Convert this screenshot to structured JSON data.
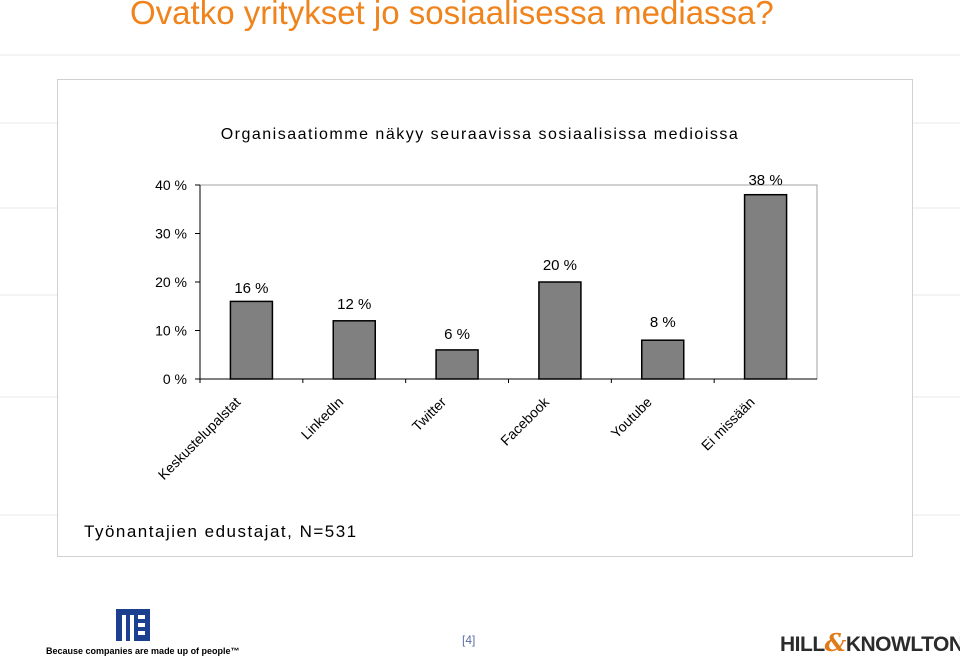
{
  "page": {
    "title": "Ovatko yritykset jo sosiaalisessa mediassa?",
    "note": "Työnantajien edustajat, N=531",
    "page_number": "[4]",
    "tagline": "Because companies are made up of people™",
    "right_logo_left": "HILL",
    "right_logo_amp": "&",
    "right_logo_right": "KNOWLTON"
  },
  "colors": {
    "title": "#f0831c",
    "bar_fill": "#808080",
    "bar_stroke": "#000000",
    "logo_blue": "#1d3f8f",
    "logo_orange": "#e07b1a"
  },
  "chart_data": {
    "type": "bar",
    "title": "Organisaatiomme näkyy seuraavissa sosiaalisissa medioissa",
    "categories": [
      "Keskustelupalstat",
      "LinkedIn",
      "Twitter",
      "Facebook",
      "Youtube",
      "Ei missään"
    ],
    "values": [
      16,
      12,
      6,
      20,
      8,
      38
    ],
    "value_labels": [
      "16 %",
      "12 %",
      "6 %",
      "20 %",
      "8 %",
      "38 %"
    ],
    "ylim": [
      0,
      40
    ],
    "yticks": [
      0,
      10,
      20,
      30,
      40
    ],
    "ytick_labels": [
      "0 %",
      "10 %",
      "20 %",
      "30 %",
      "40 %"
    ],
    "grid": false,
    "legend": "none"
  }
}
